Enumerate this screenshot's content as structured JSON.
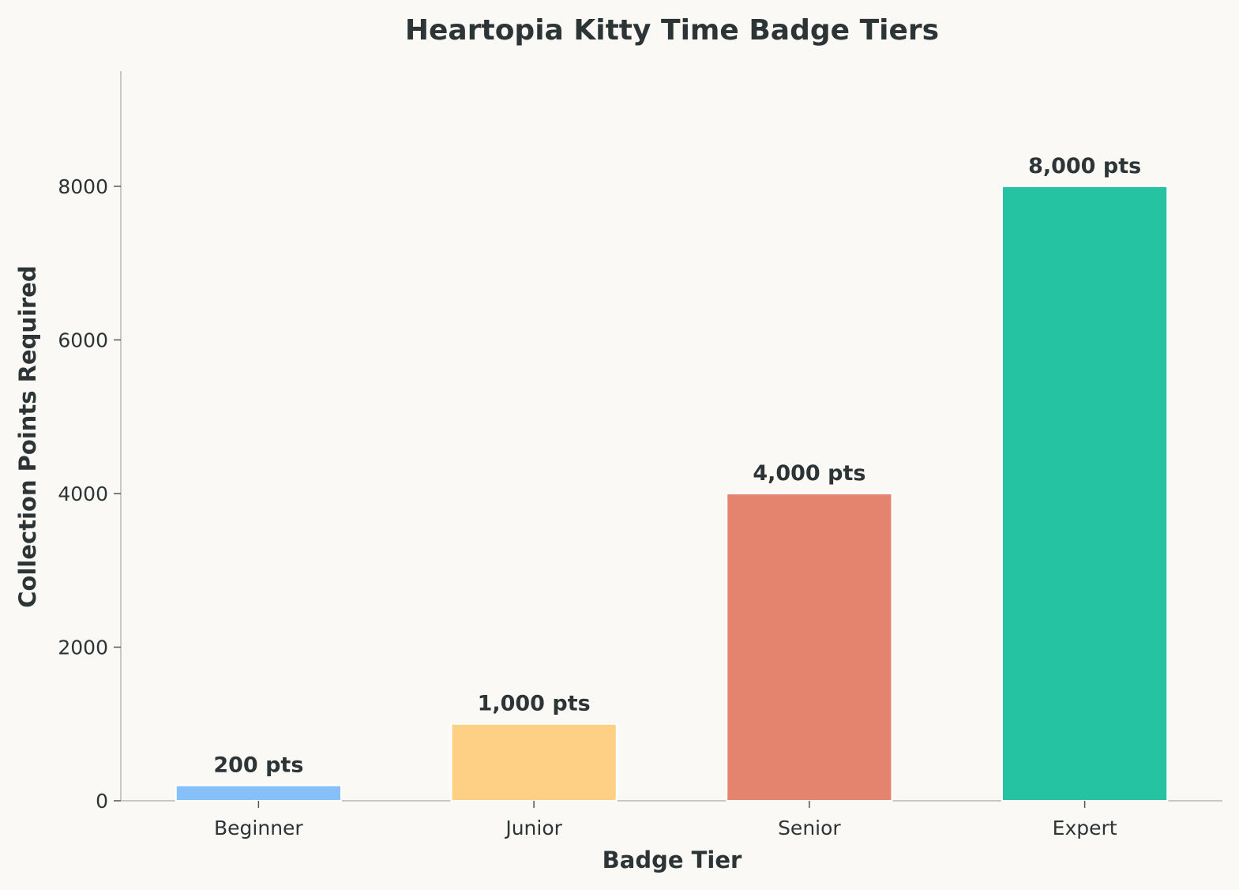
{
  "chart_data": {
    "type": "bar",
    "title": "Heartopia Kitty Time Badge Tiers",
    "xlabel": "Badge Tier",
    "ylabel": "Collection Points Required",
    "categories": [
      "Beginner",
      "Junior",
      "Senior",
      "Expert"
    ],
    "values": [
      200,
      1000,
      4000,
      8000
    ],
    "value_labels": [
      "200 pts",
      "1,000 pts",
      "4,000 pts",
      "8,000 pts"
    ],
    "colors": [
      "#85c1f8",
      "#fdd085",
      "#e4846e",
      "#26c3a3"
    ],
    "ylim": [
      0,
      9500
    ],
    "yticks": [
      0,
      2000,
      4000,
      6000,
      8000
    ],
    "grid": false,
    "legend": "none"
  },
  "style": {
    "background": "#faf9f6",
    "text_color": "#2d3436",
    "axis_color": "#c8c8c8"
  }
}
